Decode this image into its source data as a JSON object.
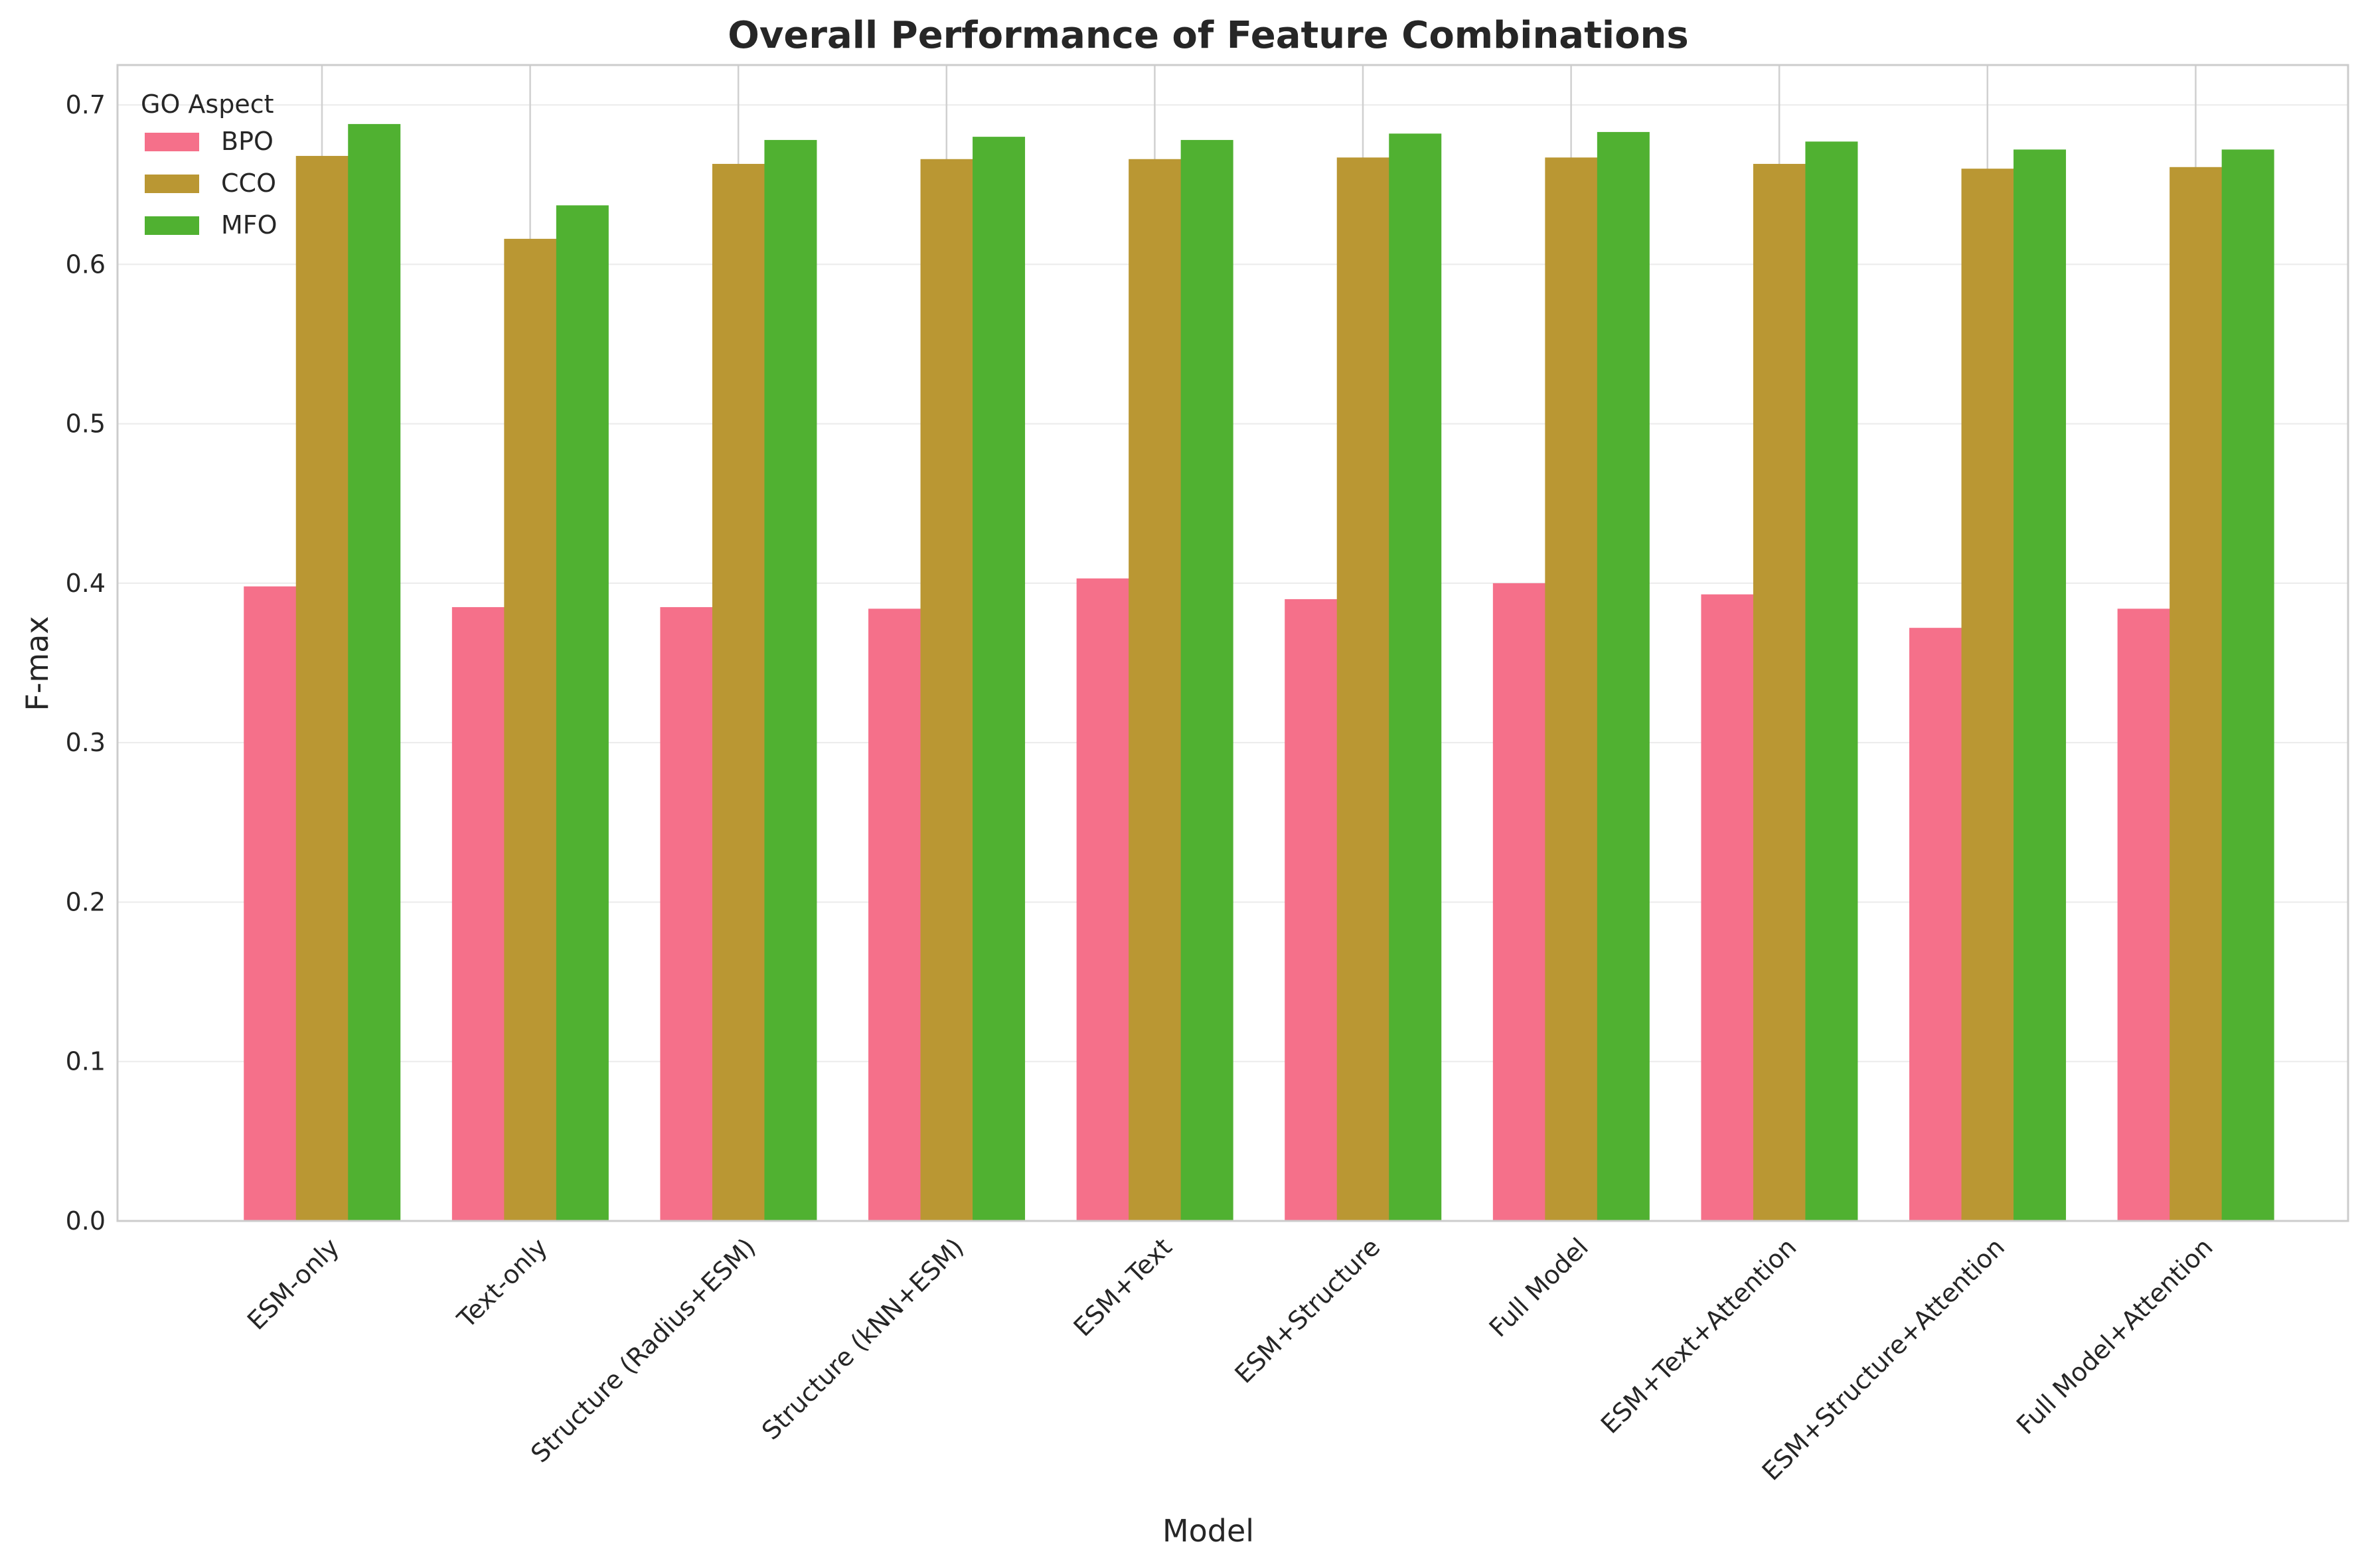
{
  "chart_data": {
    "type": "bar",
    "title": "Overall Performance of Feature Combinations",
    "xlabel": "Model",
    "ylabel": "F-max",
    "ylim": [
      0,
      0.725
    ],
    "yticks": [
      0.0,
      0.1,
      0.2,
      0.3,
      0.4,
      0.5,
      0.6,
      0.7
    ],
    "ytick_labels": [
      "0.0",
      "0.1",
      "0.2",
      "0.3",
      "0.4",
      "0.5",
      "0.6",
      "0.7"
    ],
    "grid": true,
    "legend": {
      "title": "GO Aspect",
      "placement": "top-left"
    },
    "categories": [
      "ESM-only",
      "Text-only",
      "Structure (Radius+ESM)",
      "Structure (kNN+ESM)",
      "ESM+Text",
      "ESM+Structure",
      "Full Model",
      "ESM+Text+Attention",
      "ESM+Structure+Attention",
      "Full Model+Attention"
    ],
    "series": [
      {
        "name": "BPO",
        "color": "#f5708a",
        "values": [
          0.398,
          0.385,
          0.385,
          0.384,
          0.403,
          0.39,
          0.4,
          0.393,
          0.372,
          0.384
        ]
      },
      {
        "name": "CCO",
        "color": "#ba9733",
        "values": [
          0.668,
          0.616,
          0.663,
          0.666,
          0.666,
          0.667,
          0.667,
          0.663,
          0.66,
          0.661
        ]
      },
      {
        "name": "MFO",
        "color": "#50b131",
        "values": [
          0.688,
          0.637,
          0.678,
          0.68,
          0.678,
          0.682,
          0.683,
          0.677,
          0.672,
          0.672
        ]
      }
    ]
  }
}
